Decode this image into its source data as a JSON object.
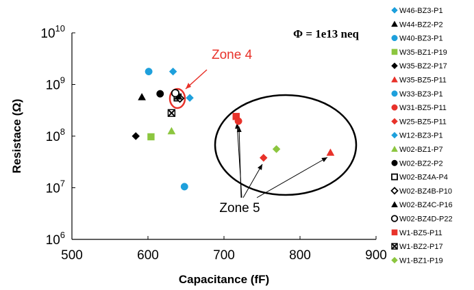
{
  "chart_data": {
    "type": "scatter",
    "xlabel": "Capacitance (fF)",
    "ylabel": "Resistace (Ω)",
    "xlim": [
      500,
      900
    ],
    "ylim": [
      1000000,
      10000000000
    ],
    "y_scale": "log",
    "x_ticks": [
      "500",
      "600",
      "700",
      "800",
      "900"
    ],
    "y_ticks": [
      {
        "base": "10",
        "exp": "6",
        "value": 1000000
      },
      {
        "base": "10",
        "exp": "7",
        "value": 10000000
      },
      {
        "base": "10",
        "exp": "8",
        "value": 100000000
      },
      {
        "base": "10",
        "exp": "9",
        "value": 1000000000
      },
      {
        "base": "10",
        "exp": "10",
        "value": 10000000000
      }
    ],
    "grid": false,
    "legend_position": "right",
    "annotation_phi": "Φ = 1e13 neq",
    "annotation_zone4": "Zone 4",
    "annotation_zone5": "Zone 5",
    "series": [
      {
        "name": "W46-BZ3-P1",
        "marker": "diamond-fill",
        "color": "#1ea0dc",
        "points": [
          [
            655,
            550000000
          ]
        ]
      },
      {
        "name": "W44-BZ2-P2",
        "marker": "triangle-fill",
        "color": "#000000",
        "points": [
          [
            592,
            570000000
          ]
        ]
      },
      {
        "name": "W40-BZ3-P1",
        "marker": "circle-fill",
        "color": "#1ea0dc",
        "points": [
          [
            648,
            10500000
          ]
        ]
      },
      {
        "name": "W35-BZ1-P19",
        "marker": "square-fill",
        "color": "#8cc63f",
        "points": [
          [
            604,
            97000000
          ]
        ]
      },
      {
        "name": "W35-BZ2-P17",
        "marker": "diamond-fill",
        "color": "#000000",
        "points": [
          [
            584,
            100000000
          ]
        ]
      },
      {
        "name": "W35-BZ5-P11",
        "marker": "triangle-fill",
        "color": "#e8322a",
        "points": [
          [
            840,
            48000000
          ]
        ]
      },
      {
        "name": "W33-BZ3-P1",
        "marker": "circle-fill",
        "color": "#1ea0dc",
        "points": [
          [
            601,
            1780000000
          ]
        ]
      },
      {
        "name": "W31-BZ5-P11",
        "marker": "circle-fill",
        "color": "#e8322a",
        "points": [
          [
            719,
            195000000
          ]
        ]
      },
      {
        "name": "W25-BZ5-P11",
        "marker": "diamond-fill",
        "color": "#e8322a",
        "points": [
          [
            752,
            38000000
          ]
        ]
      },
      {
        "name": "W12-BZ3-P1",
        "marker": "diamond-fill",
        "color": "#1ea0dc",
        "points": [
          [
            633,
            1780000000
          ]
        ]
      },
      {
        "name": "W02-BZ1-P7",
        "marker": "triangle-fill",
        "color": "#8cc63f",
        "points": [
          [
            631,
            125000000
          ]
        ]
      },
      {
        "name": "W02-BZ2-P2",
        "marker": "circle-fill",
        "color": "#000000",
        "points": [
          [
            616,
            660000000
          ]
        ]
      },
      {
        "name": "W02-BZ4A-P4",
        "marker": "square-open",
        "color": "#000000",
        "points": [
          [
            639,
            560000000
          ]
        ]
      },
      {
        "name": "W02-BZ4B-P10",
        "marker": "diamond-open",
        "color": "#000000",
        "points": [
          [
            642,
            540000000
          ]
        ]
      },
      {
        "name": "W02-BZ4C-P16",
        "marker": "triangle-fill",
        "color": "#000000",
        "points": [
          [
            640,
            590000000
          ]
        ]
      },
      {
        "name": "W02-BZ4D-P22",
        "marker": "circle-open",
        "color": "#000000",
        "points": [
          [
            636,
            680000000
          ]
        ]
      },
      {
        "name": "W1-BZ5-P11",
        "marker": "square-fill",
        "color": "#e8322a",
        "points": [
          [
            716,
            240000000
          ]
        ]
      },
      {
        "name": "W1-BZ2-P17",
        "marker": "x-square",
        "color": "#000000",
        "points": [
          [
            631,
            280000000
          ]
        ]
      },
      {
        "name": "W1-BZ1-P19",
        "marker": "diamond-fill",
        "color": "#8cc63f",
        "points": [
          [
            769,
            56000000
          ]
        ]
      }
    ]
  }
}
